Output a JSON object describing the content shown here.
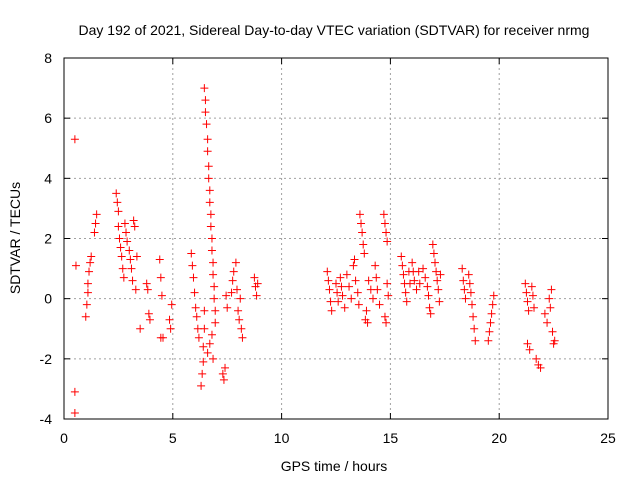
{
  "chart_data": {
    "type": "scatter",
    "title": "Day 192 of 2021, Sidereal Day-to-day VTEC variation (SDTVAR) for receiver nrmg",
    "xlabel": "GPS time / hours",
    "ylabel": "SDTVAR / TECUs",
    "xlim": [
      0,
      25
    ],
    "ylim": [
      -4,
      8
    ],
    "xticks": [
      "0",
      "5",
      "10",
      "15",
      "20",
      "25"
    ],
    "yticks": [
      "-4",
      "-2",
      "0",
      "2",
      "4",
      "6",
      "8"
    ],
    "grid": true,
    "marker": "plus",
    "color": "#ff0000",
    "series": [
      {
        "name": "nrmg",
        "points": [
          [
            0.5,
            5.3
          ],
          [
            0.55,
            1.1
          ],
          [
            0.5,
            -3.1
          ],
          [
            0.5,
            -3.8
          ],
          [
            1.0,
            -0.6
          ],
          [
            1.05,
            -0.2
          ],
          [
            1.1,
            0.2
          ],
          [
            1.1,
            0.5
          ],
          [
            1.15,
            0.9
          ],
          [
            1.2,
            1.2
          ],
          [
            1.25,
            1.4
          ],
          [
            1.4,
            2.2
          ],
          [
            1.45,
            2.5
          ],
          [
            1.5,
            2.8
          ],
          [
            2.4,
            3.5
          ],
          [
            2.45,
            3.2
          ],
          [
            2.5,
            2.9
          ],
          [
            2.5,
            2.4
          ],
          [
            2.55,
            2.0
          ],
          [
            2.6,
            1.7
          ],
          [
            2.65,
            1.4
          ],
          [
            2.7,
            1.0
          ],
          [
            2.75,
            0.7
          ],
          [
            2.8,
            2.5
          ],
          [
            2.85,
            2.2
          ],
          [
            2.9,
            1.9
          ],
          [
            3.0,
            1.6
          ],
          [
            3.05,
            1.3
          ],
          [
            3.1,
            1.0
          ],
          [
            3.15,
            0.6
          ],
          [
            3.2,
            2.6
          ],
          [
            3.25,
            2.4
          ],
          [
            3.3,
            0.3
          ],
          [
            3.35,
            1.4
          ],
          [
            3.5,
            -1.0
          ],
          [
            3.8,
            0.5
          ],
          [
            3.85,
            0.3
          ],
          [
            3.9,
            -0.5
          ],
          [
            3.95,
            -0.7
          ],
          [
            4.4,
            1.3
          ],
          [
            4.45,
            0.7
          ],
          [
            4.5,
            0.1
          ],
          [
            4.45,
            -1.3
          ],
          [
            4.55,
            -1.3
          ],
          [
            4.85,
            -0.7
          ],
          [
            4.9,
            -1.0
          ],
          [
            4.95,
            -0.2
          ],
          [
            5.85,
            1.5
          ],
          [
            5.9,
            1.1
          ],
          [
            5.95,
            0.7
          ],
          [
            6.0,
            0.2
          ],
          [
            6.05,
            -0.3
          ],
          [
            6.1,
            -0.6
          ],
          [
            6.15,
            -1.0
          ],
          [
            6.2,
            -1.3
          ],
          [
            6.3,
            -2.9
          ],
          [
            6.35,
            -2.5
          ],
          [
            6.4,
            -2.1
          ],
          [
            6.4,
            -1.6
          ],
          [
            6.45,
            -1.0
          ],
          [
            6.45,
            -0.4
          ],
          [
            6.45,
            7.0
          ],
          [
            6.5,
            6.6
          ],
          [
            6.5,
            6.2
          ],
          [
            6.55,
            5.8
          ],
          [
            6.6,
            5.3
          ],
          [
            6.6,
            4.9
          ],
          [
            6.65,
            4.4
          ],
          [
            6.65,
            4.0
          ],
          [
            6.7,
            3.6
          ],
          [
            6.7,
            3.2
          ],
          [
            6.75,
            2.8
          ],
          [
            6.75,
            2.4
          ],
          [
            6.8,
            2.0
          ],
          [
            6.8,
            1.6
          ],
          [
            6.85,
            1.2
          ],
          [
            6.85,
            0.8
          ],
          [
            6.9,
            0.4
          ],
          [
            6.9,
            0.0
          ],
          [
            6.95,
            -0.4
          ],
          [
            6.95,
            -0.8
          ],
          [
            6.6,
            -1.8
          ],
          [
            6.7,
            -1.5
          ],
          [
            6.8,
            -1.2
          ],
          [
            6.85,
            -2.0
          ],
          [
            7.3,
            -2.5
          ],
          [
            7.35,
            -2.7
          ],
          [
            7.4,
            -2.3
          ],
          [
            7.45,
            0.1
          ],
          [
            7.5,
            -0.3
          ],
          [
            7.7,
            0.2
          ],
          [
            7.75,
            0.6
          ],
          [
            7.8,
            0.9
          ],
          [
            7.9,
            1.2
          ],
          [
            7.95,
            0.3
          ],
          [
            8.0,
            -0.4
          ],
          [
            8.05,
            -0.7
          ],
          [
            8.1,
            0.0
          ],
          [
            8.15,
            -1.0
          ],
          [
            8.2,
            -1.3
          ],
          [
            8.75,
            0.7
          ],
          [
            8.8,
            0.4
          ],
          [
            8.85,
            0.1
          ],
          [
            8.9,
            0.5
          ],
          [
            12.1,
            0.9
          ],
          [
            12.15,
            0.6
          ],
          [
            12.2,
            0.3
          ],
          [
            12.25,
            -0.1
          ],
          [
            12.3,
            -0.4
          ],
          [
            12.5,
            0.5
          ],
          [
            12.55,
            0.2
          ],
          [
            12.6,
            -0.1
          ],
          [
            12.7,
            0.7
          ],
          [
            12.75,
            0.4
          ],
          [
            12.8,
            0.1
          ],
          [
            12.9,
            -0.3
          ],
          [
            13.0,
            0.8
          ],
          [
            13.1,
            0.4
          ],
          [
            13.2,
            0.0
          ],
          [
            13.3,
            1.1
          ],
          [
            13.35,
            1.3
          ],
          [
            13.4,
            0.6
          ],
          [
            13.5,
            0.2
          ],
          [
            13.55,
            -0.2
          ],
          [
            13.6,
            2.8
          ],
          [
            13.65,
            2.5
          ],
          [
            13.7,
            2.2
          ],
          [
            13.75,
            1.8
          ],
          [
            13.8,
            1.5
          ],
          [
            13.85,
            -0.7
          ],
          [
            13.9,
            -0.4
          ],
          [
            13.95,
            -0.8
          ],
          [
            14.0,
            0.6
          ],
          [
            14.1,
            0.3
          ],
          [
            14.2,
            0.0
          ],
          [
            14.3,
            1.1
          ],
          [
            14.35,
            0.7
          ],
          [
            14.4,
            0.3
          ],
          [
            14.5,
            -0.2
          ],
          [
            14.7,
            2.8
          ],
          [
            14.75,
            2.5
          ],
          [
            14.8,
            2.2
          ],
          [
            14.85,
            1.9
          ],
          [
            14.75,
            -0.6
          ],
          [
            14.8,
            -0.8
          ],
          [
            14.85,
            0.5
          ],
          [
            14.9,
            0.1
          ],
          [
            15.5,
            1.4
          ],
          [
            15.55,
            1.1
          ],
          [
            15.6,
            0.8
          ],
          [
            15.65,
            0.5
          ],
          [
            15.7,
            0.2
          ],
          [
            15.75,
            -0.1
          ],
          [
            15.85,
            0.9
          ],
          [
            15.9,
            0.5
          ],
          [
            16.0,
            1.2
          ],
          [
            16.05,
            0.9
          ],
          [
            16.1,
            0.6
          ],
          [
            16.2,
            0.3
          ],
          [
            16.3,
            0.9
          ],
          [
            16.35,
            0.5
          ],
          [
            16.5,
            1.0
          ],
          [
            16.6,
            0.7
          ],
          [
            16.7,
            0.4
          ],
          [
            16.75,
            0.1
          ],
          [
            16.8,
            -0.3
          ],
          [
            16.85,
            -0.5
          ],
          [
            16.95,
            1.8
          ],
          [
            17.0,
            1.5
          ],
          [
            17.05,
            1.2
          ],
          [
            17.1,
            0.9
          ],
          [
            17.15,
            0.6
          ],
          [
            17.2,
            0.3
          ],
          [
            17.25,
            -0.1
          ],
          [
            17.3,
            0.8
          ],
          [
            18.3,
            1.0
          ],
          [
            18.35,
            0.6
          ],
          [
            18.4,
            0.3
          ],
          [
            18.45,
            0.0
          ],
          [
            18.6,
            0.8
          ],
          [
            18.65,
            0.5
          ],
          [
            18.7,
            0.2
          ],
          [
            18.75,
            -0.2
          ],
          [
            18.8,
            -0.6
          ],
          [
            18.85,
            -1.0
          ],
          [
            18.9,
            -1.4
          ],
          [
            19.5,
            -1.4
          ],
          [
            19.55,
            -1.1
          ],
          [
            19.6,
            -0.8
          ],
          [
            19.65,
            -0.5
          ],
          [
            19.7,
            -0.2
          ],
          [
            19.75,
            0.1
          ],
          [
            21.2,
            0.5
          ],
          [
            21.25,
            0.2
          ],
          [
            21.3,
            -0.1
          ],
          [
            21.35,
            -0.4
          ],
          [
            21.3,
            -1.5
          ],
          [
            21.4,
            -1.7
          ],
          [
            21.5,
            0.4
          ],
          [
            21.55,
            0.1
          ],
          [
            21.6,
            -0.3
          ],
          [
            21.7,
            -2.0
          ],
          [
            21.8,
            -2.2
          ],
          [
            21.9,
            -2.3
          ],
          [
            22.1,
            -0.5
          ],
          [
            22.2,
            -0.8
          ],
          [
            22.3,
            0.0
          ],
          [
            22.35,
            -0.3
          ],
          [
            22.4,
            0.3
          ],
          [
            22.45,
            -1.1
          ],
          [
            22.5,
            -1.5
          ],
          [
            22.55,
            -1.4
          ]
        ]
      }
    ]
  }
}
